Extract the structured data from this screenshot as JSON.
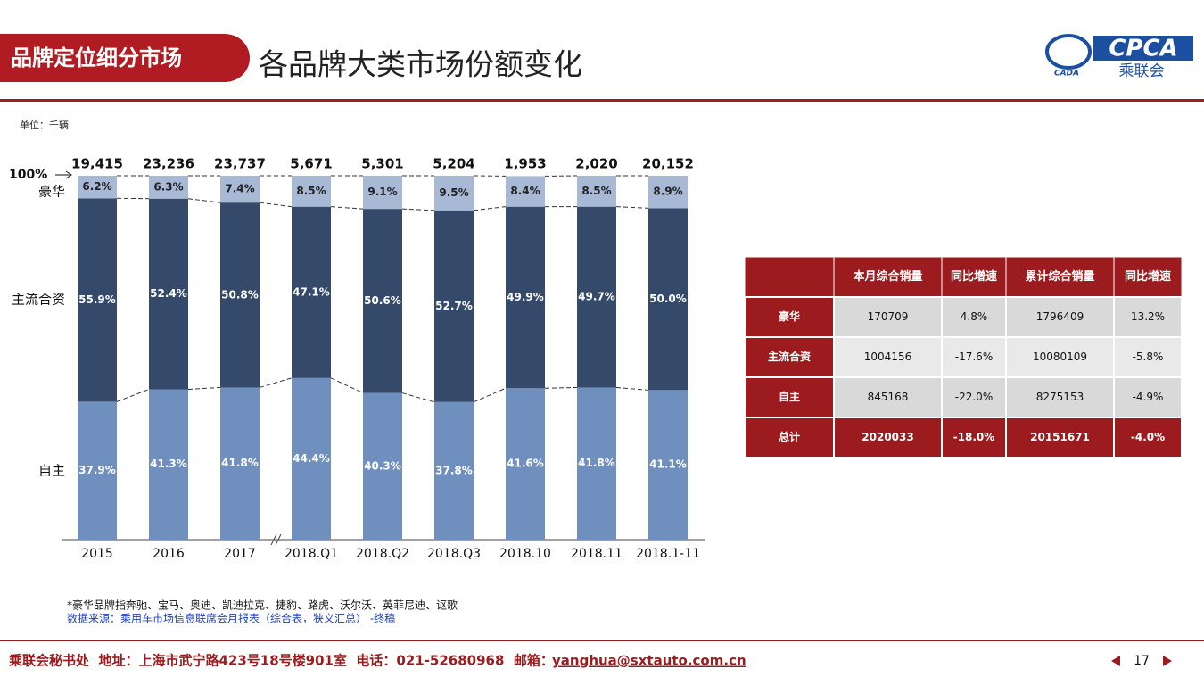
{
  "header": {
    "section": "品牌定位细分市场",
    "title": "各品牌大类市场份额变化",
    "logo": "CPCA",
    "logo_sub": "乘联会",
    "logo_small": "CADA"
  },
  "unit": "单位：千辆",
  "chart_data": {
    "type": "bar",
    "stacked": true,
    "categories": [
      "2015",
      "2016",
      "2017",
      "2018.Q1",
      "2018.Q2",
      "2018.Q3",
      "2018.10",
      "2018.11",
      "2018.1-11"
    ],
    "annotation": "100%",
    "ylim": [
      0,
      100
    ],
    "series": [
      {
        "name": "自主",
        "color": "#6f8fbe",
        "values": [
          37.9,
          41.3,
          41.8,
          44.4,
          40.3,
          37.8,
          41.6,
          41.8,
          41.1
        ],
        "value_labels": [
          "37.9%",
          "41.3%",
          "41.8%",
          "44.4%",
          "40.3%",
          "37.8%",
          "41.6%",
          "41.8%",
          "41.1%"
        ]
      },
      {
        "name": "主流合资",
        "color": "#354a6a",
        "values": [
          55.9,
          52.4,
          50.8,
          47.1,
          50.6,
          52.7,
          49.9,
          49.7,
          50.0
        ],
        "value_labels": [
          "55.9%",
          "52.4%",
          "50.8%",
          "47.1%",
          "50.6%",
          "52.7%",
          "49.9%",
          "49.7%",
          "50.0%"
        ]
      },
      {
        "name": "豪华",
        "color": "#a8b9d6",
        "values": [
          6.2,
          6.3,
          7.4,
          8.5,
          9.1,
          9.5,
          8.4,
          8.5,
          8.9
        ],
        "value_labels": [
          "6.2%",
          "6.3%",
          "7.4%",
          "8.5%",
          "9.1%",
          "9.5%",
          "8.4%",
          "8.5%",
          "8.9%"
        ]
      }
    ],
    "totals": {
      "values": [
        19415,
        23236,
        23737,
        5671,
        5301,
        5204,
        1953,
        2020,
        20152
      ],
      "value_labels": [
        "19,415",
        "23,236",
        "23,737",
        "5,671",
        "5,301",
        "5,204",
        "1,953",
        "2,020",
        "20,152"
      ]
    }
  },
  "table": {
    "columns": [
      "本月综合销量",
      "同比增速",
      "累计综合销量",
      "同比增速"
    ],
    "rows": [
      [
        "豪华",
        "170709",
        "4.8%",
        "1796409",
        "13.2%"
      ],
      [
        "主流合资",
        "1004156",
        "-17.6%",
        "10080109",
        "-5.8%"
      ],
      [
        "自主",
        "845168",
        "-22.0%",
        "8275153",
        "-4.9%"
      ],
      [
        "总计",
        "2020033",
        "-18.0%",
        "20151671",
        "-4.0%"
      ]
    ]
  },
  "notes": [
    "*豪华品牌指奔驰、宝马、奥迪、凯迪拉克、捷豹、路虎、沃尔沃、英菲尼迪、讴歌",
    "数据来源：乘用车市场信息联席会月报表（综合表，狭义汇总） -终稿"
  ],
  "footer": {
    "text": "乘联会秘书处  地址：上海市武宁路423号18号楼901室  电话：021-52680968  邮箱：",
    "email": "yanghua@sxtauto.com.cn",
    "page": "17"
  }
}
